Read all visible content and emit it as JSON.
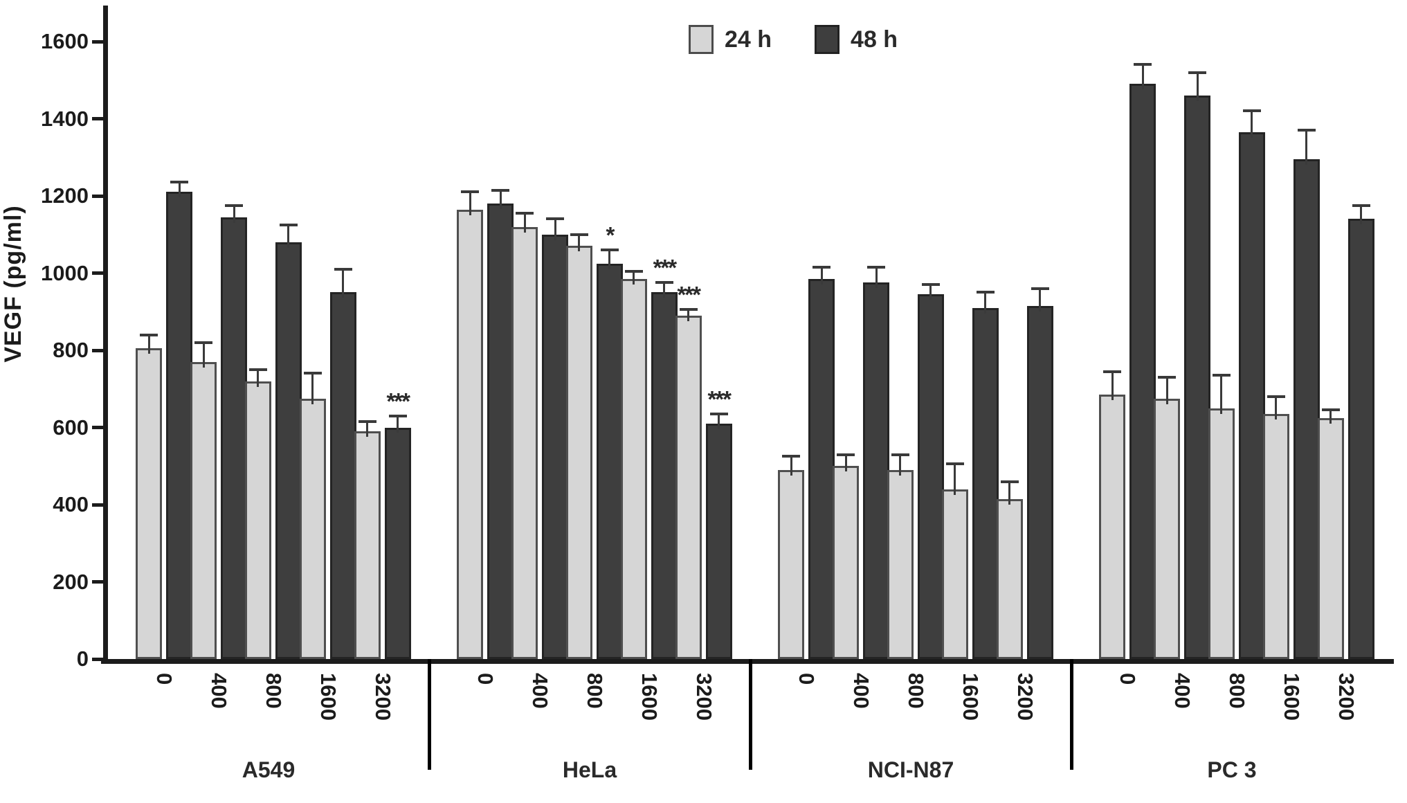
{
  "figure": {
    "title": "",
    "ylabel": "VEGF (pg/ml)"
  },
  "chart_data": {
    "type": "bar",
    "title": "",
    "ylabel": "VEGF (pg/ml)",
    "xlabel": "",
    "ylim": [
      0,
      1700
    ],
    "yticks": [
      0,
      200,
      400,
      600,
      800,
      1000,
      1200,
      1400,
      1600
    ],
    "grid": false,
    "legend_position": "top-center",
    "series_names": [
      "24 h",
      "48 h"
    ],
    "colors": {
      "24h": "#d6d6d6",
      "48h": "#3e3e3e"
    },
    "error_bars": true,
    "dose_labels": [
      "0",
      "400",
      "800",
      "1600",
      "3200"
    ],
    "groups": [
      {
        "name": "A549",
        "series": [
          {
            "name": "24 h",
            "values": [
              805,
              770,
              720,
              675,
              590
            ],
            "errors": [
              35,
              50,
              30,
              65,
              25
            ],
            "sig": [
              "",
              "",
              "",
              "",
              ""
            ]
          },
          {
            "name": "48 h",
            "values": [
              1210,
              1145,
              1080,
              950,
              600
            ],
            "errors": [
              25,
              30,
              45,
              60,
              30
            ],
            "sig": [
              "",
              "",
              "",
              "",
              "***"
            ]
          }
        ]
      },
      {
        "name": "HeLa",
        "series": [
          {
            "name": "24 h",
            "values": [
              1165,
              1120,
              1070,
              985,
              890
            ],
            "errors": [
              45,
              35,
              30,
              20,
              15
            ],
            "sig": [
              "",
              "",
              "",
              "",
              "***"
            ]
          },
          {
            "name": "48 h",
            "values": [
              1180,
              1100,
              1025,
              950,
              610
            ],
            "errors": [
              35,
              40,
              35,
              25,
              25
            ],
            "sig": [
              "",
              "",
              "*",
              "***",
              "***"
            ]
          }
        ]
      },
      {
        "name": "NCI-N87",
        "series": [
          {
            "name": "24 h",
            "values": [
              490,
              500,
              490,
              440,
              415
            ],
            "errors": [
              35,
              30,
              40,
              65,
              45
            ],
            "sig": [
              "",
              "",
              "",
              "",
              ""
            ]
          },
          {
            "name": "48 h",
            "values": [
              985,
              975,
              945,
              910,
              915
            ],
            "errors": [
              30,
              40,
              25,
              40,
              45
            ],
            "sig": [
              "",
              "",
              "",
              "",
              ""
            ]
          }
        ]
      },
      {
        "name": "PC 3",
        "series": [
          {
            "name": "24 h",
            "values": [
              685,
              675,
              650,
              635,
              625
            ],
            "errors": [
              60,
              55,
              85,
              45,
              20
            ],
            "sig": [
              "",
              "",
              "",
              "",
              ""
            ]
          },
          {
            "name": "48 h",
            "values": [
              1490,
              1460,
              1365,
              1295,
              1140
            ],
            "errors": [
              50,
              60,
              55,
              75,
              35
            ],
            "sig": [
              "",
              "",
              "",
              "",
              ""
            ]
          }
        ]
      }
    ]
  }
}
